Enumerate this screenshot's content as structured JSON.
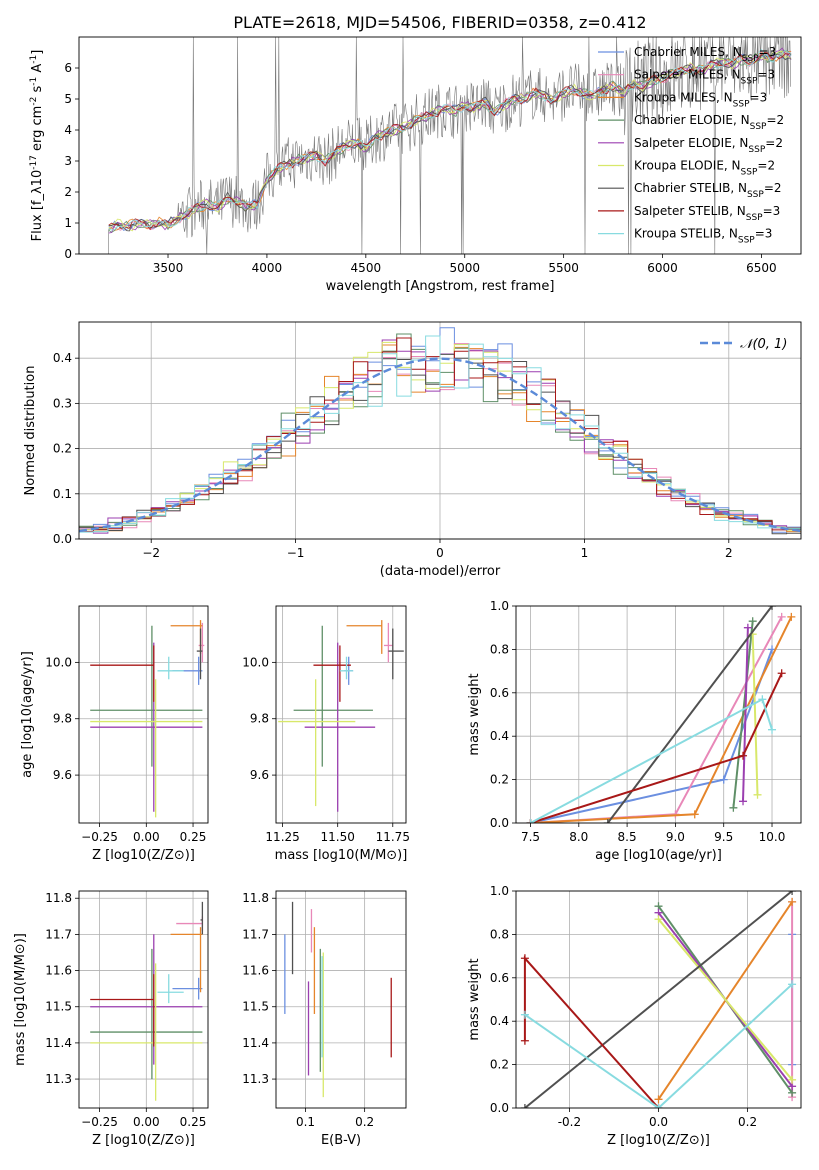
{
  "suptitle": "PLATE=2618, MJD=54506, FIBERID=0358, z=0.412",
  "colors": {
    "chabrier_miles": "#6b8fe0",
    "salpeter_miles": "#e888b8",
    "kroupa_miles": "#e5852b",
    "chabrier_elodie": "#5f8f67",
    "salpeter_elodie": "#9b3fb0",
    "kroupa_elodie": "#d8e86a",
    "chabrier_stelib": "#505050",
    "salpeter_stelib": "#a81818",
    "kroupa_stelib": "#88dbe0",
    "data": "#777777",
    "normal": "#5b8ad8",
    "grid": "#b0b0b0"
  },
  "chart_data": [
    {
      "id": "spectrum",
      "type": "line",
      "xlabel": "wavelength [Angstrom, rest frame]",
      "ylabel": "Flux [f_λ10^-17 erg cm^-2 s^-1 A^-1]",
      "xlim": [
        3050,
        6700
      ],
      "ylim": [
        0,
        7
      ],
      "xticks": [
        3500,
        4000,
        4500,
        5000,
        5500,
        6000,
        6500
      ],
      "yticks": [
        0,
        1,
        2,
        3,
        4,
        5,
        6
      ],
      "grid": false,
      "legend": "top-right",
      "series": [
        {
          "name": "Chabrier MILES, N_SSP=3",
          "color_key": "chabrier_miles"
        },
        {
          "name": "Salpeter MILES, N_SSP=3",
          "color_key": "salpeter_miles"
        },
        {
          "name": "Kroupa MILES, N_SSP=3",
          "color_key": "kroupa_miles"
        },
        {
          "name": "Chabrier ELODIE, N_SSP=2",
          "color_key": "chabrier_elodie"
        },
        {
          "name": "Salpeter ELODIE, N_SSP=2",
          "color_key": "salpeter_elodie"
        },
        {
          "name": "Kroupa ELODIE, N_SSP=2",
          "color_key": "kroupa_elodie"
        },
        {
          "name": "Chabrier STELIB, N_SSP=2",
          "color_key": "chabrier_stelib"
        },
        {
          "name": "Salpeter STELIB, N_SSP=3",
          "color_key": "salpeter_stelib"
        },
        {
          "name": "Kroupa STELIB, N_SSP=3",
          "color_key": "kroupa_stelib"
        }
      ],
      "model_curve": {
        "x": [
          3200,
          3250,
          3300,
          3350,
          3400,
          3450,
          3500,
          3550,
          3600,
          3650,
          3700,
          3750,
          3800,
          3850,
          3900,
          3950,
          4000,
          4050,
          4100,
          4150,
          4200,
          4250,
          4300,
          4350,
          4400,
          4450,
          4500,
          4550,
          4600,
          4650,
          4700,
          4750,
          4800,
          4850,
          4900,
          4950,
          5000,
          5050,
          5100,
          5150,
          5200,
          5250,
          5300,
          5350,
          5400,
          5450,
          5500,
          5550,
          5600,
          5650,
          5700,
          5750,
          5800,
          5850,
          5900,
          5950,
          6000,
          6050,
          6100,
          6150,
          6200,
          6250,
          6300,
          6350,
          6400,
          6450,
          6500,
          6550,
          6600,
          6650
        ],
        "y": [
          0.8,
          0.95,
          0.9,
          1.0,
          0.95,
          1.0,
          0.95,
          1.15,
          1.3,
          1.5,
          1.6,
          1.5,
          1.8,
          1.7,
          1.5,
          1.6,
          2.4,
          2.7,
          2.9,
          3.0,
          3.1,
          3.2,
          3.0,
          3.3,
          3.5,
          3.6,
          3.4,
          3.8,
          3.9,
          4.0,
          4.1,
          4.3,
          4.4,
          4.6,
          4.7,
          4.6,
          4.8,
          4.7,
          4.9,
          4.6,
          4.8,
          5.0,
          5.0,
          5.2,
          5.1,
          5.0,
          5.2,
          5.3,
          5.2,
          5.1,
          5.3,
          5.4,
          5.2,
          5.5,
          5.4,
          5.6,
          5.7,
          5.8,
          5.9,
          6.0,
          5.9,
          6.1,
          6.2,
          6.1,
          6.3,
          6.2,
          6.4,
          6.3,
          6.5,
          6.4
        ]
      },
      "data_noise_range": [
        3550,
        6650
      ]
    },
    {
      "id": "residuals",
      "type": "histogram",
      "xlabel": "(data-model)/error",
      "ylabel": "Normed distribution",
      "xlim": [
        -2.5,
        2.5
      ],
      "ylim": [
        0,
        0.48
      ],
      "xticks": [
        -2,
        -1,
        0,
        1,
        2
      ],
      "yticks": [
        0.0,
        0.1,
        0.2,
        0.3,
        0.4
      ],
      "grid": true,
      "legend": "top-right",
      "normal_label": "𝒩(0, 1)",
      "bin_width": 0.1,
      "bins_start": -2.5
    },
    {
      "id": "age_vs_Z",
      "type": "errorbar",
      "xlabel": "Z [log10(Z/Z⊙)]",
      "ylabel": "age [log10(age/yr)]",
      "xlim": [
        -0.36,
        0.33
      ],
      "ylim": [
        9.43,
        10.2
      ],
      "xticks": [
        -0.25,
        0.0,
        0.25
      ],
      "yticks": [
        9.6,
        9.8,
        10.0
      ],
      "grid": true,
      "points": [
        {
          "c": "chabrier_miles",
          "x": 0.28,
          "xerr": [
            0.14,
            0.02
          ],
          "y": 9.97,
          "yerr": [
            0.05,
            0.05
          ]
        },
        {
          "c": "salpeter_miles",
          "x": 0.3,
          "xerr": [
            0.02,
            0.01
          ],
          "y": 10.06,
          "yerr": [
            0.06,
            0.08
          ]
        },
        {
          "c": "kroupa_miles",
          "x": 0.29,
          "xerr": [
            0.16,
            0.01
          ],
          "y": 10.13,
          "yerr": [
            0.1,
            0.02
          ]
        },
        {
          "c": "chabrier_elodie",
          "x": 0.03,
          "xerr": [
            0.33,
            0.27
          ],
          "y": 9.83,
          "yerr": [
            0.2,
            0.3
          ]
        },
        {
          "c": "salpeter_elodie",
          "x": 0.04,
          "xerr": [
            0.34,
            0.26
          ],
          "y": 9.77,
          "yerr": [
            0.3,
            0.3
          ]
        },
        {
          "c": "kroupa_elodie",
          "x": 0.05,
          "xerr": [
            0.35,
            0.25
          ],
          "y": 9.79,
          "yerr": [
            0.34,
            0.15
          ]
        },
        {
          "c": "chabrier_stelib",
          "x": 0.29,
          "xerr": [
            0.02,
            0.01
          ],
          "y": 10.04,
          "yerr": [
            0.1,
            0.08
          ]
        },
        {
          "c": "salpeter_stelib",
          "x": 0.04,
          "xerr": [
            0.34,
            0.0
          ],
          "y": 9.99,
          "yerr": [
            0.13,
            0.07
          ]
        },
        {
          "c": "kroupa_stelib",
          "x": 0.12,
          "xerr": [
            0.06,
            0.08
          ],
          "y": 9.97,
          "yerr": [
            0.03,
            0.05
          ]
        }
      ]
    },
    {
      "id": "age_vs_mass",
      "type": "errorbar",
      "xlabel": "mass [log10(M/M⊙)]",
      "ylabel": "",
      "xlim": [
        11.22,
        11.81
      ],
      "ylim": [
        9.43,
        10.2
      ],
      "xticks": [
        11.25,
        11.5,
        11.75
      ],
      "yticks": [
        9.6,
        9.8,
        10.0
      ],
      "grid": true,
      "points": [
        {
          "c": "chabrier_miles",
          "x": 11.55,
          "xerr": [
            0.02,
            0.02
          ],
          "y": 9.97,
          "yerr": [
            0.05,
            0.05
          ]
        },
        {
          "c": "salpeter_miles",
          "x": 11.73,
          "xerr": [
            0.02,
            0.02
          ],
          "y": 10.06,
          "yerr": [
            0.06,
            0.08
          ]
        },
        {
          "c": "kroupa_miles",
          "x": 11.7,
          "xerr": [
            0.16,
            0.0
          ],
          "y": 10.13,
          "yerr": [
            0.1,
            0.02
          ]
        },
        {
          "c": "chabrier_elodie",
          "x": 11.43,
          "xerr": [
            0.13,
            0.23
          ],
          "y": 9.83,
          "yerr": [
            0.2,
            0.3
          ]
        },
        {
          "c": "salpeter_elodie",
          "x": 11.5,
          "xerr": [
            0.15,
            0.17
          ],
          "y": 9.77,
          "yerr": [
            0.3,
            0.3
          ]
        },
        {
          "c": "kroupa_elodie",
          "x": 11.4,
          "xerr": [
            0.17,
            0.18
          ],
          "y": 9.79,
          "yerr": [
            0.3,
            0.15
          ]
        },
        {
          "c": "chabrier_stelib",
          "x": 11.75,
          "xerr": [
            0.02,
            0.05
          ],
          "y": 10.04,
          "yerr": [
            0.1,
            0.08
          ]
        },
        {
          "c": "salpeter_stelib",
          "x": 11.51,
          "xerr": [
            0.12,
            0.05
          ],
          "y": 9.99,
          "yerr": [
            0.13,
            0.07
          ]
        },
        {
          "c": "kroupa_stelib",
          "x": 11.54,
          "xerr": [
            0.03,
            0.03
          ],
          "y": 9.97,
          "yerr": [
            0.03,
            0.05
          ]
        }
      ]
    },
    {
      "id": "cum_weight_age",
      "type": "line",
      "xlabel": "age [log10(age/yr)]",
      "ylabel": "mass weight",
      "xlim": [
        7.35,
        10.3
      ],
      "ylim": [
        0,
        1
      ],
      "xticks": [
        7.5,
        8.0,
        8.5,
        9.0,
        9.5,
        10.0
      ],
      "yticks": [
        0.0,
        0.2,
        0.4,
        0.6,
        0.8,
        1.0
      ],
      "grid": true,
      "series": [
        {
          "c": "chabrier_miles",
          "x": [
            7.5,
            9.5,
            10.0
          ],
          "y": [
            0.0,
            0.2,
            0.8
          ]
        },
        {
          "c": "salpeter_miles",
          "x": [
            7.5,
            9.0,
            10.1
          ],
          "y": [
            0.0,
            0.04,
            0.95
          ]
        },
        {
          "c": "kroupa_miles",
          "x": [
            7.5,
            9.2,
            10.2
          ],
          "y": [
            0.0,
            0.04,
            0.95
          ]
        },
        {
          "c": "chabrier_elodie",
          "x": [
            9.6,
            9.8
          ],
          "y": [
            0.07,
            0.93
          ]
        },
        {
          "c": "salpeter_elodie",
          "x": [
            9.7,
            9.75
          ],
          "y": [
            0.1,
            0.9
          ]
        },
        {
          "c": "kroupa_elodie",
          "x": [
            9.85,
            9.8
          ],
          "y": [
            0.13,
            0.87
          ]
        },
        {
          "c": "chabrier_stelib",
          "x": [
            8.3,
            10.0
          ],
          "y": [
            0.0,
            1.0
          ]
        },
        {
          "c": "salpeter_stelib",
          "x": [
            7.5,
            9.7,
            10.1
          ],
          "y": [
            0.0,
            0.31,
            0.69
          ]
        },
        {
          "c": "kroupa_stelib",
          "x": [
            7.5,
            9.9,
            10.0
          ],
          "y": [
            0.0,
            0.57,
            0.43
          ]
        }
      ]
    },
    {
      "id": "mass_vs_Z",
      "type": "errorbar",
      "xlabel": "Z [log10(Z/Z⊙)]",
      "ylabel": "mass [log10(M/M⊙)]",
      "xlim": [
        -0.36,
        0.33
      ],
      "ylim": [
        11.22,
        11.82
      ],
      "xticks": [
        -0.25,
        0.0,
        0.25
      ],
      "yticks": [
        11.3,
        11.4,
        11.5,
        11.6,
        11.7,
        11.8
      ],
      "grid": true,
      "points": [
        {
          "c": "chabrier_miles",
          "x": 0.28,
          "xerr": [
            0.14,
            0.02
          ],
          "y": 11.55,
          "yerr": [
            0.03,
            0.03
          ]
        },
        {
          "c": "salpeter_miles",
          "x": 0.3,
          "xerr": [
            0.14,
            0.0
          ],
          "y": 11.73,
          "yerr": [
            0.02,
            0.02
          ]
        },
        {
          "c": "kroupa_miles",
          "x": 0.29,
          "xerr": [
            0.16,
            0.01
          ],
          "y": 11.7,
          "yerr": [
            0.16,
            0.02
          ]
        },
        {
          "c": "chabrier_elodie",
          "x": 0.03,
          "xerr": [
            0.33,
            0.27
          ],
          "y": 11.43,
          "yerr": [
            0.13,
            0.23
          ]
        },
        {
          "c": "salpeter_elodie",
          "x": 0.04,
          "xerr": [
            0.34,
            0.26
          ],
          "y": 11.5,
          "yerr": [
            0.16,
            0.2
          ]
        },
        {
          "c": "kroupa_elodie",
          "x": 0.05,
          "xerr": [
            0.35,
            0.25
          ],
          "y": 11.4,
          "yerr": [
            0.16,
            0.22
          ]
        },
        {
          "c": "chabrier_stelib",
          "x": 0.3,
          "xerr": [
            0.01,
            0.0
          ],
          "y": 11.74,
          "yerr": [
            0.04,
            0.05
          ]
        },
        {
          "c": "salpeter_stelib",
          "x": 0.04,
          "xerr": [
            0.34,
            0.0
          ],
          "y": 11.52,
          "yerr": [
            0.13,
            0.07
          ]
        },
        {
          "c": "kroupa_stelib",
          "x": 0.12,
          "xerr": [
            0.06,
            0.08
          ],
          "y": 11.54,
          "yerr": [
            0.03,
            0.05
          ]
        }
      ]
    },
    {
      "id": "mass_vs_ebv",
      "type": "errorbar",
      "xlabel": "E(B-V)",
      "ylabel": "",
      "xlim": [
        0.05,
        0.27
      ],
      "ylim": [
        11.22,
        11.82
      ],
      "xticks": [
        0.1,
        0.2
      ],
      "yticks": [
        11.3,
        11.4,
        11.5,
        11.6,
        11.7,
        11.8
      ],
      "grid": true,
      "points": [
        {
          "c": "chabrier_miles",
          "x": 0.065,
          "xerr": [
            0,
            0
          ],
          "y": 11.59,
          "yerr": [
            0.11,
            0.11
          ]
        },
        {
          "c": "salpeter_miles",
          "x": 0.11,
          "xerr": [
            0,
            0
          ],
          "y": 11.71,
          "yerr": [
            0.06,
            0.06
          ]
        },
        {
          "c": "kroupa_miles",
          "x": 0.115,
          "xerr": [
            0,
            0
          ],
          "y": 11.6,
          "yerr": [
            0.12,
            0.12
          ]
        },
        {
          "c": "chabrier_elodie",
          "x": 0.125,
          "xerr": [
            0,
            0
          ],
          "y": 11.49,
          "yerr": [
            0.17,
            0.17
          ]
        },
        {
          "c": "salpeter_elodie",
          "x": 0.105,
          "xerr": [
            0,
            0
          ],
          "y": 11.44,
          "yerr": [
            0.13,
            0.13
          ]
        },
        {
          "c": "kroupa_elodie",
          "x": 0.13,
          "xerr": [
            0,
            0
          ],
          "y": 11.45,
          "yerr": [
            0.2,
            0.2
          ]
        },
        {
          "c": "chabrier_stelib",
          "x": 0.078,
          "xerr": [
            0,
            0
          ],
          "y": 11.69,
          "yerr": [
            0.1,
            0.1
          ]
        },
        {
          "c": "salpeter_stelib",
          "x": 0.245,
          "xerr": [
            0,
            0
          ],
          "y": 11.47,
          "yerr": [
            0.11,
            0.11
          ]
        },
        {
          "c": "kroupa_stelib",
          "x": 0.128,
          "xerr": [
            0,
            0
          ],
          "y": 11.5,
          "yerr": [
            0.14,
            0.14
          ]
        }
      ]
    },
    {
      "id": "cum_weight_Z",
      "type": "line",
      "xlabel": "Z [log10(Z/Z⊙)]",
      "ylabel": "mass weight",
      "xlim": [
        -0.32,
        0.32
      ],
      "ylim": [
        0,
        1
      ],
      "xticks": [
        -0.2,
        0.0,
        0.2
      ],
      "yticks": [
        0.0,
        0.2,
        0.4,
        0.6,
        0.8,
        1.0
      ],
      "grid": true,
      "series": [
        {
          "c": "chabrier_miles",
          "x": [
            0.3,
            0.3
          ],
          "y": [
            0.2,
            0.8
          ]
        },
        {
          "c": "salpeter_miles",
          "x": [
            0.3,
            0.3
          ],
          "y": [
            0.05,
            0.95
          ]
        },
        {
          "c": "kroupa_miles",
          "x": [
            0.0,
            0.3
          ],
          "y": [
            0.04,
            0.95
          ]
        },
        {
          "c": "chabrier_elodie",
          "x": [
            0.0,
            0.3
          ],
          "y": [
            0.93,
            0.07
          ]
        },
        {
          "c": "salpeter_elodie",
          "x": [
            0.0,
            0.3
          ],
          "y": [
            0.9,
            0.1
          ]
        },
        {
          "c": "kroupa_elodie",
          "x": [
            0.0,
            0.3
          ],
          "y": [
            0.87,
            0.13
          ]
        },
        {
          "c": "chabrier_stelib",
          "x": [
            -0.3,
            0.3
          ],
          "y": [
            0.0,
            1.0
          ]
        },
        {
          "c": "salpeter_stelib",
          "x": [
            -0.3,
            -0.3,
            0.0
          ],
          "y": [
            0.31,
            0.69,
            0.0
          ]
        },
        {
          "c": "kroupa_stelib",
          "x": [
            -0.3,
            0.0,
            0.3
          ],
          "y": [
            0.43,
            0.0,
            0.57
          ]
        }
      ]
    }
  ]
}
